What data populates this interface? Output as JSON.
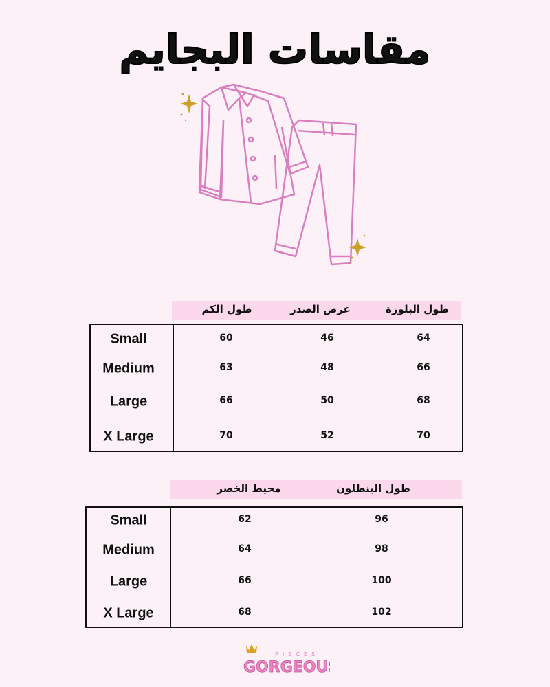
{
  "title": "مقاسات البجايم",
  "colors": {
    "background": "#fdf1f8",
    "header_bar": "#fbd8ec",
    "illustration": "#d97fbf",
    "sparkle": "#c9a227"
  },
  "icons": [
    "pajama-shirt-icon",
    "pajama-pants-icon",
    "sparkle-icon"
  ],
  "top_table": {
    "headers": [
      "طول الكم",
      "عرض الصدر",
      "طول البلوزة"
    ],
    "rows": [
      {
        "size": "Small",
        "values": [
          "60",
          "46",
          "64"
        ]
      },
      {
        "size": "Medium",
        "values": [
          "63",
          "48",
          "66"
        ]
      },
      {
        "size": "Large",
        "values": [
          "66",
          "50",
          "68"
        ]
      },
      {
        "size": "X Large",
        "values": [
          "70",
          "52",
          "70"
        ]
      }
    ]
  },
  "bottom_table": {
    "headers": [
      "محيط الخصر",
      "طول البنطلون"
    ],
    "rows": [
      {
        "size": "Small",
        "values": [
          "62",
          "96"
        ]
      },
      {
        "size": "Medium",
        "values": [
          "64",
          "98"
        ]
      },
      {
        "size": "Large",
        "values": [
          "66",
          "100"
        ]
      },
      {
        "size": "X Large",
        "values": [
          "68",
          "102"
        ]
      }
    ]
  },
  "logo": {
    "top": "PIECES",
    "main": "GORGEOUS"
  }
}
